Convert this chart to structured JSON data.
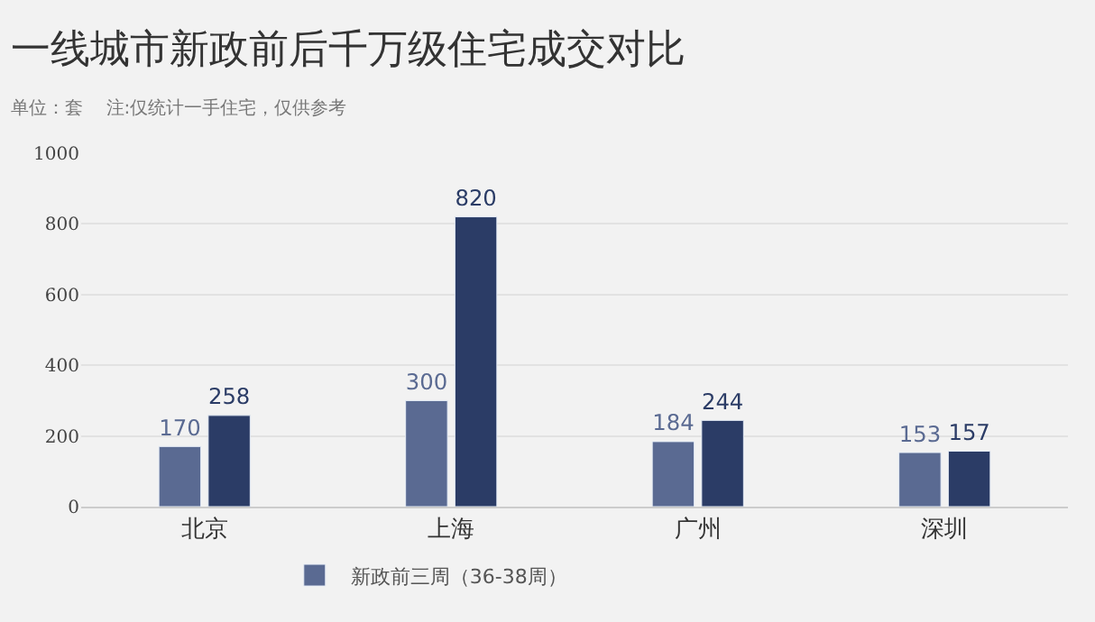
{
  "chart_data": {
    "type": "bar",
    "title": "一线城市新政前后千万级住宅成交对比",
    "subtitle": "单位：套    注:仅统计一手住宅，仅供参考",
    "categories": [
      "北京",
      "上海",
      "广州",
      "深圳"
    ],
    "series": [
      {
        "name": "新政前三周（36-38周）",
        "color": "#5a6a92",
        "values": [
          170,
          300,
          184,
          153
        ]
      },
      {
        "color": "#2b3c66",
        "values": [
          258,
          820,
          244,
          157
        ]
      }
    ],
    "ylim": [
      0,
      1000
    ],
    "yticks": [
      0,
      200,
      400,
      600,
      800,
      1000
    ],
    "grid": "y",
    "legend": "bottom",
    "data_labels": true
  }
}
